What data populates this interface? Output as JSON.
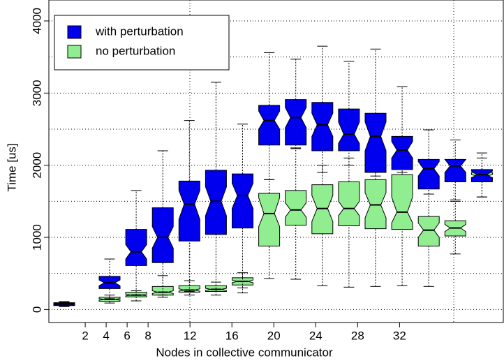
{
  "chart_data": {
    "type": "box",
    "xlabel": "Nodes in collective communicator",
    "ylabel": "Time [us]",
    "xlim": [
      -1.47,
      41.9
    ],
    "xticks": [
      2,
      4,
      6,
      8,
      12,
      16,
      20,
      24,
      28,
      32
    ],
    "ylim": [
      -180,
      4290
    ],
    "yticks": [
      0,
      1000,
      2000,
      3000,
      4000
    ],
    "ygrid": [
      0,
      500,
      1000,
      1500,
      2000,
      2500,
      3000,
      3500,
      4000
    ],
    "grid": true,
    "notch": true,
    "legend": "upper left",
    "series": [
      {
        "name": "with perturbation",
        "color": "#0000ee",
        "boxes": [
          {
            "low": 40,
            "q1": 60,
            "median": 75,
            "q3": 90,
            "high": 110,
            "notch_low": 68,
            "notch_high": 82
          },
          {
            "low": 150,
            "q1": 290,
            "median": 370,
            "q3": 460,
            "high": 700,
            "notch_low": 330,
            "notch_high": 410
          },
          {
            "low": 200,
            "q1": 610,
            "median": 800,
            "q3": 1110,
            "high": 1650,
            "notch_low": 700,
            "notch_high": 900
          },
          {
            "low": 200,
            "q1": 650,
            "median": 1000,
            "q3": 1410,
            "high": 2200,
            "notch_low": 850,
            "notch_high": 1150
          },
          {
            "low": 250,
            "q1": 950,
            "median": 1460,
            "q3": 1780,
            "high": 2620,
            "notch_low": 1250,
            "notch_high": 1650
          },
          {
            "low": 250,
            "q1": 1040,
            "median": 1500,
            "q3": 1930,
            "high": 3150,
            "notch_low": 1300,
            "notch_high": 1700
          },
          {
            "low": 300,
            "q1": 1130,
            "median": 1580,
            "q3": 1880,
            "high": 2570,
            "notch_low": 1400,
            "notch_high": 1750
          },
          {
            "low": 1800,
            "q1": 2280,
            "median": 2620,
            "q3": 2830,
            "high": 3560,
            "notch_low": 2500,
            "notch_high": 2750
          },
          {
            "low": 2230,
            "q1": 2280,
            "median": 2660,
            "q3": 2910,
            "high": 3470,
            "notch_low": 2520,
            "notch_high": 2800
          },
          {
            "low": 1900,
            "q1": 2200,
            "median": 2560,
            "q3": 2870,
            "high": 3650,
            "notch_low": 2400,
            "notch_high": 2720
          },
          {
            "low": 2000,
            "q1": 2200,
            "median": 2430,
            "q3": 2780,
            "high": 3440,
            "notch_low": 2300,
            "notch_high": 2600
          },
          {
            "low": 1850,
            "q1": 1900,
            "median": 2400,
            "q3": 2720,
            "high": 3610,
            "notch_low": 2200,
            "notch_high": 2600
          },
          {
            "low": 1900,
            "q1": 1940,
            "median": 2210,
            "q3": 2400,
            "high": 3090,
            "notch_low": 2100,
            "notch_high": 2330
          },
          {
            "low": 1600,
            "q1": 1670,
            "median": 1950,
            "q3": 2080,
            "high": 2490,
            "notch_low": 1850,
            "notch_high": 2050
          },
          {
            "low": 1520,
            "q1": 1770,
            "median": 1990,
            "q3": 2080,
            "high": 2350,
            "notch_low": 1900,
            "notch_high": 2080
          },
          {
            "low": 1560,
            "q1": 1770,
            "median": 1870,
            "q3": 1940,
            "high": 2170,
            "notch_low": 1820,
            "notch_high": 1920
          }
        ]
      },
      {
        "name": "no perturbation",
        "color": "#90ee90",
        "boxes": [
          {
            "low": 50,
            "q1": 55,
            "median": 70,
            "q3": 95,
            "high": 100,
            "notch_low": 64,
            "notch_high": 78
          },
          {
            "low": 90,
            "q1": 115,
            "median": 140,
            "q3": 170,
            "high": 200,
            "notch_low": 130,
            "notch_high": 150
          },
          {
            "low": 120,
            "q1": 175,
            "median": 200,
            "q3": 240,
            "high": 260,
            "notch_low": 190,
            "notch_high": 212
          },
          {
            "low": 170,
            "q1": 200,
            "median": 240,
            "q3": 320,
            "high": 470,
            "notch_low": 222,
            "notch_high": 260
          },
          {
            "low": 200,
            "q1": 240,
            "median": 270,
            "q3": 330,
            "high": 400,
            "notch_low": 255,
            "notch_high": 287
          },
          {
            "low": 200,
            "q1": 250,
            "median": 280,
            "q3": 330,
            "high": 380,
            "notch_low": 266,
            "notch_high": 295
          },
          {
            "low": 230,
            "q1": 340,
            "median": 390,
            "q3": 440,
            "high": 510,
            "notch_low": 372,
            "notch_high": 408
          },
          {
            "low": 430,
            "q1": 880,
            "median": 1330,
            "q3": 1610,
            "high": 1800,
            "notch_low": 1150,
            "notch_high": 1550
          },
          {
            "low": 420,
            "q1": 1170,
            "median": 1380,
            "q3": 1650,
            "high": 2240,
            "notch_low": 1280,
            "notch_high": 1480
          },
          {
            "low": 330,
            "q1": 1050,
            "median": 1400,
            "q3": 1730,
            "high": 2000,
            "notch_low": 1220,
            "notch_high": 1580
          },
          {
            "low": 310,
            "q1": 1160,
            "median": 1400,
            "q3": 1770,
            "high": 2100,
            "notch_low": 1300,
            "notch_high": 1500
          },
          {
            "low": 320,
            "q1": 1120,
            "median": 1450,
            "q3": 1800,
            "high": 2200,
            "notch_low": 1270,
            "notch_high": 1620
          },
          {
            "low": 330,
            "q1": 1110,
            "median": 1350,
            "q3": 1870,
            "high": 2300,
            "notch_low": 1200,
            "notch_high": 1560
          },
          {
            "low": 320,
            "q1": 880,
            "median": 1100,
            "q3": 1290,
            "high": 2000,
            "notch_low": 1000,
            "notch_high": 1200
          },
          {
            "low": 770,
            "q1": 1020,
            "median": 1130,
            "q3": 1230,
            "high": 1500,
            "notch_low": 1080,
            "notch_high": 1180
          },
          {
            "low": 1560,
            "q1": 1800,
            "median": 1850,
            "q3": 1900,
            "high": 2100,
            "notch_low": 1830,
            "notch_high": 1870
          }
        ]
      }
    ]
  }
}
